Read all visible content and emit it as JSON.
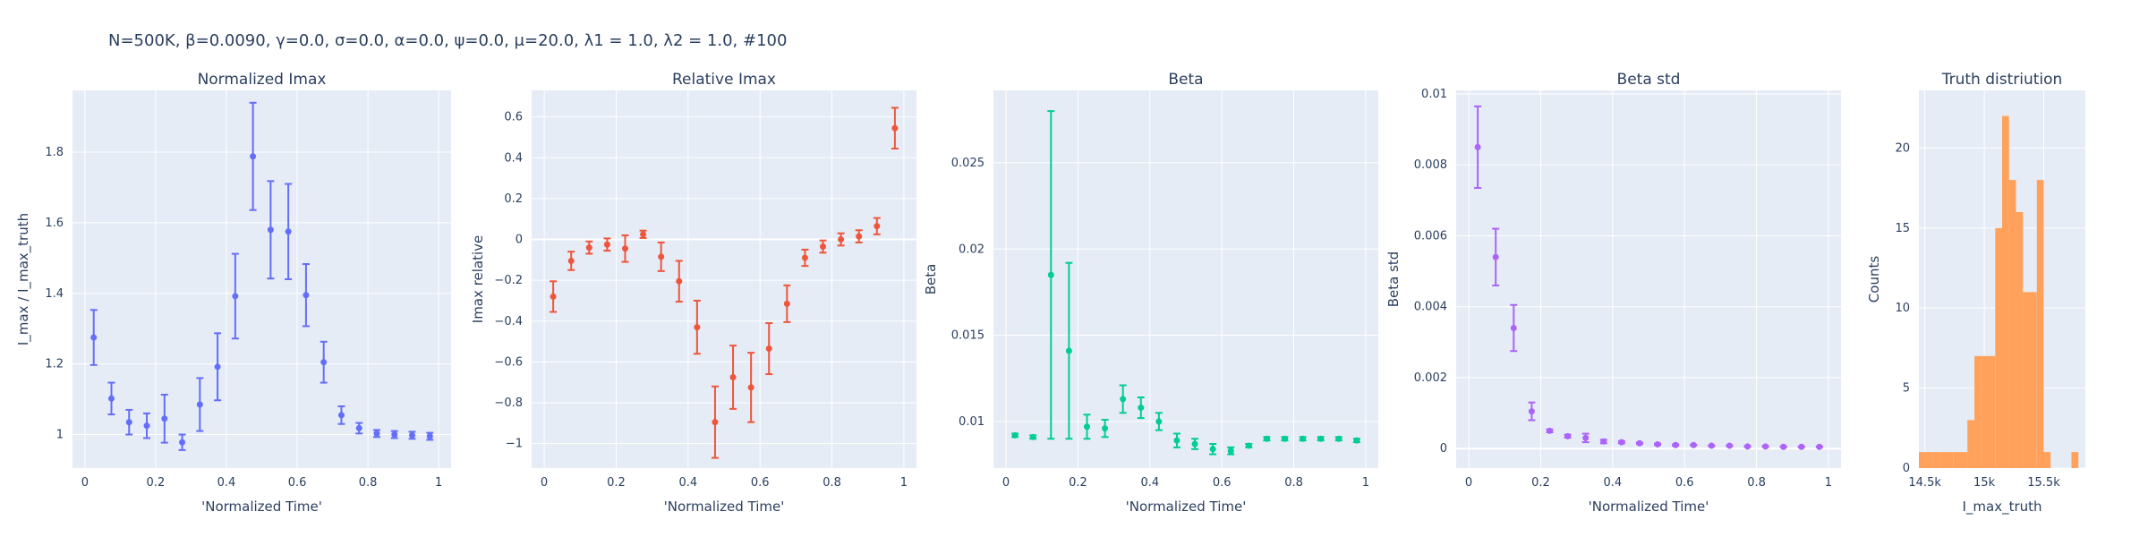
{
  "figure": {
    "title": "N=500K, β=0.0090, γ=0.0, σ=0.0,  α=0.0, ψ=0.0, μ=20.0, λ1 = 1.0, λ2 = 1.0, #100"
  },
  "chart_data": [
    {
      "type": "scatter",
      "title": "Normalized Imax",
      "xlabel": "'Normalized Time'",
      "ylabel": "I_max / I_max_truth",
      "xlim": [
        -0.035,
        1.035
      ],
      "ylim": [
        0.905,
        1.975
      ],
      "xticks": [
        0,
        0.2,
        0.4,
        0.6,
        0.8,
        1
      ],
      "xticklabels": [
        "0",
        "0.2",
        "0.4",
        "0.6",
        "0.8",
        "1"
      ],
      "yticks": [
        1,
        1.2,
        1.4,
        1.6,
        1.8
      ],
      "yticklabels": [
        "1",
        "1.2",
        "1.4",
        "1.6",
        "1.8"
      ],
      "grid": true,
      "color": "#636efa",
      "x": [
        0.025,
        0.075,
        0.125,
        0.175,
        0.225,
        0.275,
        0.325,
        0.375,
        0.425,
        0.475,
        0.525,
        0.575,
        0.625,
        0.675,
        0.725,
        0.775,
        0.825,
        0.875,
        0.925,
        0.975
      ],
      "y": [
        1.275,
        1.102,
        1.035,
        1.025,
        1.045,
        0.978,
        1.085,
        1.192,
        1.392,
        1.788,
        1.58,
        1.575,
        1.395,
        1.205,
        1.055,
        1.018,
        1.003,
        1.0,
        0.998,
        0.995
      ],
      "err": [
        0.078,
        0.045,
        0.035,
        0.035,
        0.068,
        0.022,
        0.075,
        0.095,
        0.12,
        0.152,
        0.138,
        0.135,
        0.088,
        0.058,
        0.025,
        0.015,
        0.01,
        0.01,
        0.01,
        0.01
      ]
    },
    {
      "type": "scatter",
      "title": "Relative Imax",
      "xlabel": "'Normalized Time'",
      "ylabel": "Imax relative",
      "xlim": [
        -0.035,
        1.035
      ],
      "ylim": [
        -1.12,
        0.73
      ],
      "xticks": [
        0,
        0.2,
        0.4,
        0.6,
        0.8,
        1
      ],
      "xticklabels": [
        "0",
        "0.2",
        "0.4",
        "0.6",
        "0.8",
        "1"
      ],
      "yticks": [
        -1,
        -0.8,
        -0.6,
        -0.4,
        -0.2,
        0,
        0.2,
        0.4,
        0.6
      ],
      "yticklabels": [
        "−1",
        "−0.8",
        "−0.6",
        "−0.4",
        "−0.2",
        "0",
        "0.2",
        "0.4",
        "0.6"
      ],
      "grid": true,
      "color": "#ef553b",
      "x": [
        0.025,
        0.075,
        0.125,
        0.175,
        0.225,
        0.275,
        0.325,
        0.375,
        0.425,
        0.475,
        0.525,
        0.575,
        0.625,
        0.675,
        0.725,
        0.775,
        0.825,
        0.875,
        0.925,
        0.975
      ],
      "y": [
        -0.28,
        -0.105,
        -0.04,
        -0.025,
        -0.045,
        0.025,
        -0.085,
        -0.205,
        -0.43,
        -0.895,
        -0.675,
        -0.725,
        -0.535,
        -0.315,
        -0.09,
        -0.035,
        0.0,
        0.015,
        0.065,
        0.545
      ],
      "err": [
        0.075,
        0.045,
        0.03,
        0.03,
        0.065,
        0.018,
        0.07,
        0.1,
        0.13,
        0.175,
        0.155,
        0.17,
        0.125,
        0.09,
        0.04,
        0.03,
        0.03,
        0.03,
        0.04,
        0.1
      ]
    },
    {
      "type": "scatter",
      "title": "Beta",
      "xlabel": "'Normalized Time'",
      "ylabel": "Beta",
      "xlim": [
        -0.035,
        1.035
      ],
      "ylim": [
        0.0073,
        0.0292
      ],
      "xticks": [
        0,
        0.2,
        0.4,
        0.6,
        0.8,
        1
      ],
      "xticklabels": [
        "0",
        "0.2",
        "0.4",
        "0.6",
        "0.8",
        "1"
      ],
      "yticks": [
        0.01,
        0.015,
        0.02,
        0.025
      ],
      "yticklabels": [
        "0.01",
        "0.015",
        "0.02",
        "0.025"
      ],
      "grid": true,
      "color": "#00cc96",
      "x": [
        0.025,
        0.075,
        0.125,
        0.175,
        0.225,
        0.275,
        0.325,
        0.375,
        0.425,
        0.475,
        0.525,
        0.575,
        0.625,
        0.675,
        0.725,
        0.775,
        0.825,
        0.875,
        0.925,
        0.975
      ],
      "y": [
        0.0092,
        0.0091,
        0.0185,
        0.0141,
        0.0097,
        0.0096,
        0.0113,
        0.0108,
        0.01,
        0.0089,
        0.0087,
        0.0084,
        0.0083,
        0.0086,
        0.009,
        0.009,
        0.009,
        0.009,
        0.009,
        0.0089
      ],
      "err": [
        0.0001,
        0.0001,
        0.0095,
        0.0051,
        0.0007,
        0.0005,
        0.0008,
        0.0006,
        0.0005,
        0.0004,
        0.0003,
        0.0003,
        0.0002,
        0.0001,
        0.0001,
        0.0001,
        0.0001,
        0.0001,
        0.0001,
        0.0001
      ]
    },
    {
      "type": "scatter",
      "title": "Beta std",
      "xlabel": "'Normalized Time'",
      "ylabel": "Beta std",
      "xlim": [
        -0.035,
        1.035
      ],
      "ylim": [
        -0.00055,
        0.0101
      ],
      "xticks": [
        0,
        0.2,
        0.4,
        0.6,
        0.8,
        1
      ],
      "xticklabels": [
        "0",
        "0.2",
        "0.4",
        "0.6",
        "0.8",
        "1"
      ],
      "yticks": [
        0,
        0.002,
        0.004,
        0.006,
        0.008,
        0.01
      ],
      "yticklabels": [
        "0",
        "0.002",
        "0.004",
        "0.006",
        "0.008",
        "0.01"
      ],
      "grid": true,
      "color": "#ab63fa",
      "x": [
        0.025,
        0.075,
        0.125,
        0.175,
        0.225,
        0.275,
        0.325,
        0.375,
        0.425,
        0.475,
        0.525,
        0.575,
        0.625,
        0.675,
        0.725,
        0.775,
        0.825,
        0.875,
        0.925,
        0.975
      ],
      "y": [
        0.0085,
        0.0054,
        0.0034,
        0.00105,
        0.0005,
        0.00035,
        0.0003,
        0.0002,
        0.00018,
        0.00015,
        0.00012,
        0.0001,
        0.0001,
        8e-05,
        8e-05,
        6e-05,
        6e-05,
        5e-05,
        5e-05,
        5e-05
      ],
      "err": [
        0.00115,
        0.0008,
        0.00065,
        0.00025,
        4e-05,
        4e-05,
        0.00012,
        5e-05,
        3e-05,
        2e-05,
        2e-05,
        2e-05,
        1e-05,
        1e-05,
        1e-05,
        1e-05,
        1e-05,
        1e-05,
        1e-05,
        1e-05
      ]
    },
    {
      "type": "bar",
      "title": "Truth distriution",
      "xlabel": "I_max_truth",
      "ylabel": "Counts",
      "xlim": [
        14450,
        15850
      ],
      "ylim": [
        0,
        23.6
      ],
      "xticks": [
        14500,
        15000,
        15500
      ],
      "xticklabels": [
        "14.5k",
        "15k",
        "15.5k"
      ],
      "yticks": [
        0,
        5,
        10,
        15,
        20
      ],
      "yticklabels": [
        "0",
        "5",
        "10",
        "15",
        "20"
      ],
      "grid": true,
      "color": "#ffa15a",
      "bin_width": 58.33,
      "bin_starts": [
        14450,
        14508,
        14567,
        14625,
        14683,
        14742,
        14800,
        14858,
        14917,
        14975,
        15033,
        15092,
        15150,
        15208,
        15267,
        15325,
        15383,
        15442,
        15500,
        15558,
        15617,
        15675,
        15733,
        15792
      ],
      "counts": [
        1,
        1,
        1,
        1,
        1,
        1,
        1,
        3,
        7,
        7,
        7,
        15,
        22,
        18,
        16,
        11,
        11,
        18,
        1,
        0,
        0,
        0,
        1,
        0
      ]
    }
  ]
}
